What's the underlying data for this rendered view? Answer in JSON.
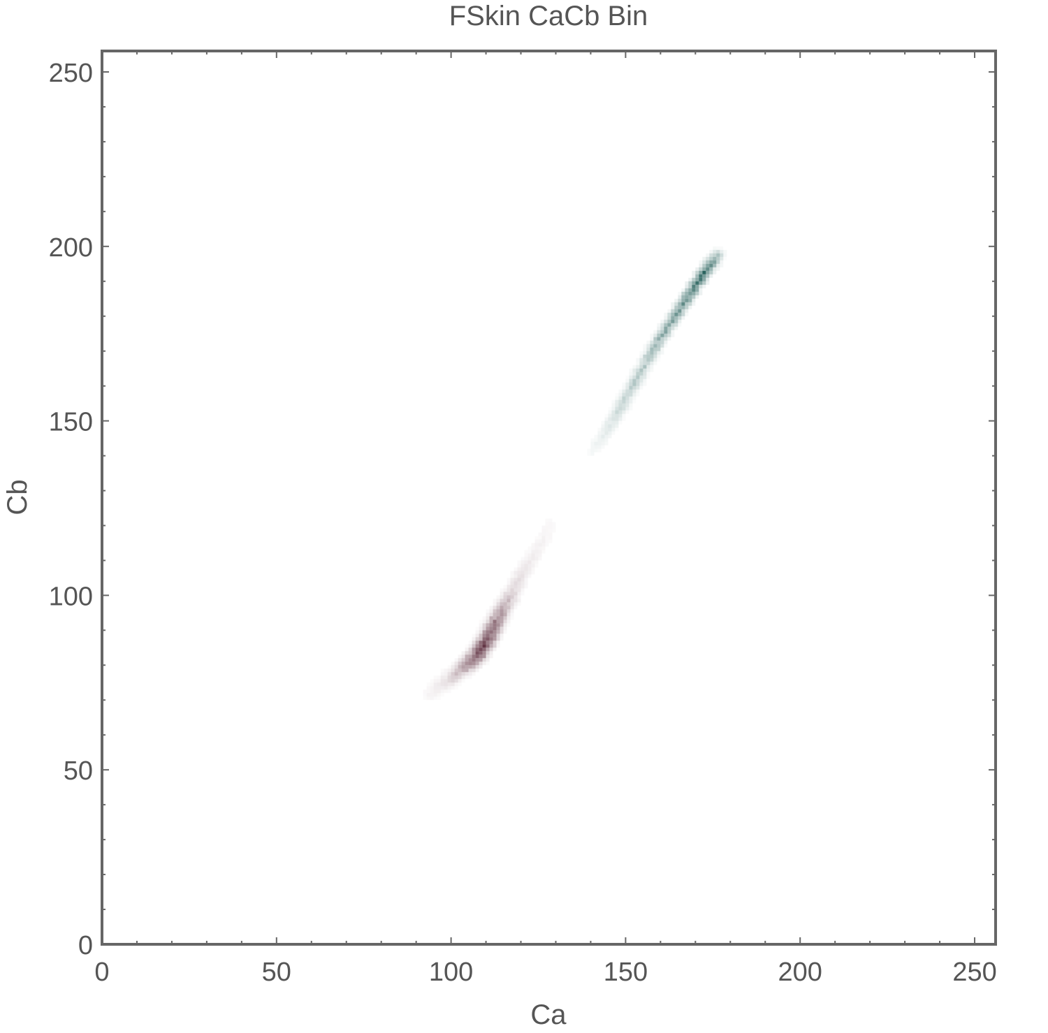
{
  "chart_data": {
    "type": "heatmap",
    "title": "FSkin CaCb Bin",
    "xlabel": "Ca",
    "ylabel": "Cb",
    "xlim": [
      0,
      256
    ],
    "ylim": [
      0,
      256
    ],
    "xticks": [
      0,
      50,
      100,
      150,
      200,
      250
    ],
    "yticks": [
      0,
      50,
      100,
      150,
      200,
      250
    ],
    "xtick_labels": [
      "0",
      "50",
      "100",
      "150",
      "200",
      "250"
    ],
    "ytick_labels": [
      "0",
      "50",
      "100",
      "150",
      "200",
      "250"
    ],
    "bin_size": 1,
    "grid": false,
    "frame_color": "#666666",
    "clusters": [
      {
        "color": "#5a2a3a",
        "description_points": [
          {
            "ca": 93,
            "cb": 71,
            "intensity": 0.05
          },
          {
            "ca": 97,
            "cb": 74,
            "intensity": 0.1
          },
          {
            "ca": 100,
            "cb": 76,
            "intensity": 0.2
          },
          {
            "ca": 103,
            "cb": 79,
            "intensity": 0.4
          },
          {
            "ca": 106,
            "cb": 81,
            "intensity": 0.6
          },
          {
            "ca": 108,
            "cb": 84,
            "intensity": 0.8
          },
          {
            "ca": 110,
            "cb": 87,
            "intensity": 0.75
          },
          {
            "ca": 112,
            "cb": 91,
            "intensity": 0.6
          },
          {
            "ca": 114,
            "cb": 95,
            "intensity": 0.4
          },
          {
            "ca": 117,
            "cb": 100,
            "intensity": 0.2
          },
          {
            "ca": 120,
            "cb": 106,
            "intensity": 0.12
          },
          {
            "ca": 124,
            "cb": 112,
            "intensity": 0.07
          },
          {
            "ca": 128,
            "cb": 120,
            "intensity": 0.04
          }
        ]
      },
      {
        "color": "#1e5a55",
        "description_points": [
          {
            "ca": 140,
            "cb": 141,
            "intensity": 0.05
          },
          {
            "ca": 144,
            "cb": 146,
            "intensity": 0.12
          },
          {
            "ca": 148,
            "cb": 153,
            "intensity": 0.25
          },
          {
            "ca": 152,
            "cb": 160,
            "intensity": 0.3
          },
          {
            "ca": 156,
            "cb": 167,
            "intensity": 0.35
          },
          {
            "ca": 160,
            "cb": 174,
            "intensity": 0.45
          },
          {
            "ca": 164,
            "cb": 180,
            "intensity": 0.55
          },
          {
            "ca": 168,
            "cb": 186,
            "intensity": 0.65
          },
          {
            "ca": 172,
            "cb": 192,
            "intensity": 0.8
          },
          {
            "ca": 176,
            "cb": 197,
            "intensity": 0.3
          }
        ]
      }
    ]
  }
}
